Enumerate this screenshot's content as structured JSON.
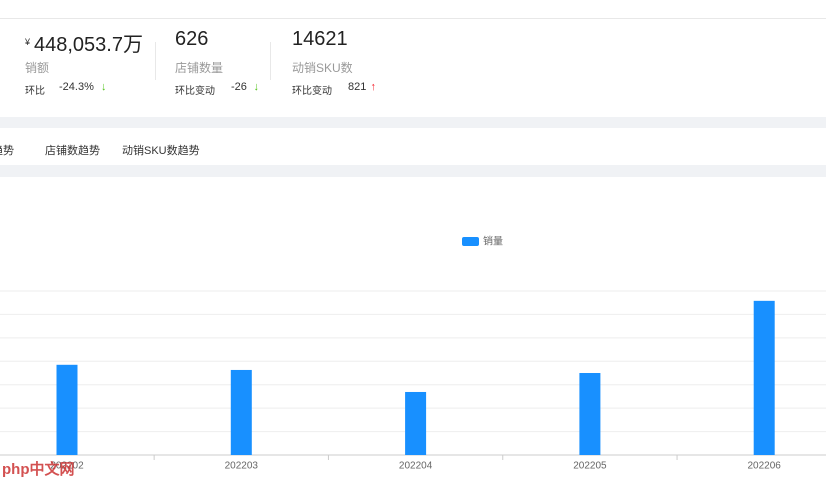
{
  "stats": [
    {
      "prefix": "¥",
      "value": "448,053.7万",
      "label": "销额",
      "change_label": "环比",
      "change": "-24.3%",
      "trend": "↓",
      "trend_color": "#52c41a"
    },
    {
      "value": "626",
      "label": "店铺数量",
      "change_label": "环比变动",
      "change": "-26",
      "trend": "↓",
      "trend_color": "#52c41a"
    },
    {
      "value": "14621",
      "label": "动销SKU数",
      "change_label": "环比变动",
      "change": "821",
      "trend": "↑",
      "trend_color": "#f5222d"
    }
  ],
  "tabs": [
    "销额趋势",
    "店铺数趋势",
    "动销SKU数趋势"
  ],
  "chart_data": {
    "type": "bar",
    "categories": [
      "202202",
      "202203",
      "202204",
      "202205",
      "202206"
    ],
    "series": [
      {
        "name": "销量",
        "color": "#1890ff",
        "values": [
          3.85,
          3.63,
          2.69,
          3.5,
          6.58
        ]
      }
    ],
    "ylim": [
      0,
      7
    ],
    "yticks": [
      0,
      1,
      2,
      3,
      4,
      5,
      6,
      7
    ],
    "grid": true,
    "legend": "top"
  },
  "watermark": "php中文网"
}
